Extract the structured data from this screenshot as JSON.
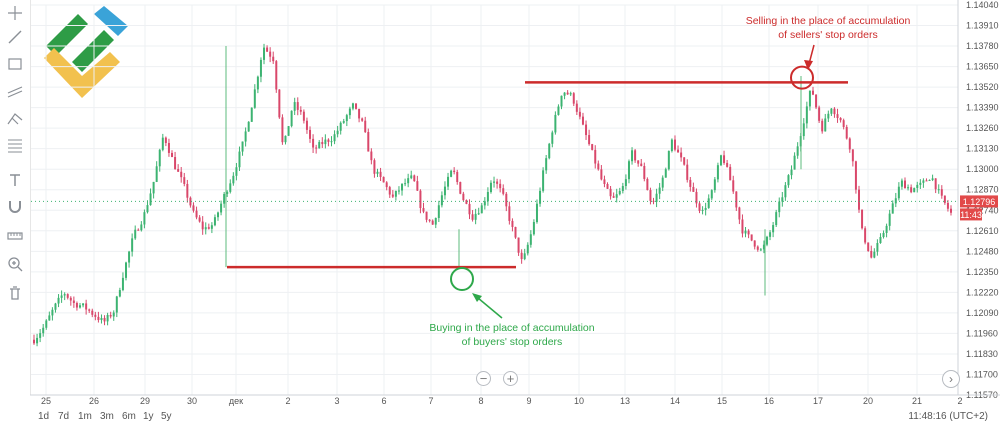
{
  "bottom_bar": {
    "ranges": [
      "1d",
      "7d",
      "1m",
      "3m",
      "6m",
      "1y",
      "5y"
    ],
    "clock": "11:48:16 (UTC+2)"
  },
  "icons": {
    "toolbar": [
      "crosshair-icon",
      "trend-line-icon",
      "rectangle-icon",
      "channel-icon",
      "pitchfork-icon",
      "fib-icon",
      "text-icon",
      "magnet-icon",
      "ruler-icon",
      "zoom-icon",
      "trash-icon"
    ],
    "zoom_out": "minus-icon",
    "zoom_in": "plus-icon",
    "scroll_right": "chevron-right-icon"
  },
  "chart_data": {
    "type": "candlestick",
    "x_labels": [
      "25",
      "26",
      "29",
      "30",
      "дек",
      "2",
      "3",
      "6",
      "7",
      "8",
      "9",
      "10",
      "13",
      "14",
      "15",
      "16",
      "17",
      "20",
      "21",
      "2"
    ],
    "y_ticks": [
      "1.14040",
      "1.13910",
      "1.13780",
      "1.13650",
      "1.13520",
      "1.13390",
      "1.13260",
      "1.13130",
      "1.13000",
      "1.12870",
      "1.12740",
      "1.12610",
      "1.12480",
      "1.12350",
      "1.12220",
      "1.12090",
      "1.11960",
      "1.11830",
      "1.11700",
      "1.11570"
    ],
    "ylim": [
      1.1157,
      1.1404
    ],
    "last_price": {
      "value": "1.12796",
      "time": "11:43",
      "color": "#e24a4a"
    },
    "colors": {
      "up": "#3cb371",
      "down": "#d9476a",
      "annotation_red": "#cc2b2b",
      "annotation_green": "#2ea84a",
      "grid": "#eef0f3"
    },
    "levels": [
      {
        "name": "resistance",
        "value": 1.1355,
        "color": "#cc2b2b"
      },
      {
        "name": "support",
        "value": 1.1238,
        "color": "#cc2b2b"
      }
    ],
    "annotations": [
      {
        "name": "sell-annotation",
        "lines": [
          "Selling in the place of accumulation",
          "of sellers' stop orders"
        ],
        "color": "#cc2b2b"
      },
      {
        "name": "buy-annotation",
        "lines": [
          "Buying in the place of accumulation",
          "of buyers' stop orders"
        ],
        "color": "#2ea84a"
      }
    ],
    "price_path": [
      [
        0,
        1.1192
      ],
      [
        1,
        1.12
      ],
      [
        2,
        1.1212
      ],
      [
        3,
        1.1222
      ],
      [
        4,
        1.1215
      ],
      [
        5,
        1.1213
      ],
      [
        6,
        1.1208
      ],
      [
        7,
        1.1203
      ],
      [
        8,
        1.121
      ],
      [
        9,
        1.1235
      ],
      [
        10,
        1.1258
      ],
      [
        11,
        1.127
      ],
      [
        12,
        1.1292
      ],
      [
        13,
        1.1322
      ],
      [
        14,
        1.1304
      ],
      [
        15,
        1.129
      ],
      [
        16,
        1.1272
      ],
      [
        17,
        1.1262
      ],
      [
        18,
        1.1265
      ],
      [
        19,
        1.1282
      ],
      [
        20,
        1.1297
      ],
      [
        21,
        1.1317
      ],
      [
        22,
        1.1345
      ],
      [
        23,
        1.1378
      ],
      [
        24,
        1.137
      ],
      [
        25,
        1.1312
      ],
      [
        26,
        1.1342
      ],
      [
        27,
        1.1333
      ],
      [
        28,
        1.1312
      ],
      [
        29,
        1.1317
      ],
      [
        30,
        1.132
      ],
      [
        31,
        1.133
      ],
      [
        32,
        1.134
      ],
      [
        33,
        1.1328
      ],
      [
        34,
        1.13
      ],
      [
        35,
        1.1292
      ],
      [
        36,
        1.1282
      ],
      [
        37,
        1.129
      ],
      [
        38,
        1.1295
      ],
      [
        39,
        1.1272
      ],
      [
        40,
        1.1265
      ],
      [
        41,
        1.1285
      ],
      [
        42,
        1.13
      ],
      [
        43,
        1.1282
      ],
      [
        44,
        1.127
      ],
      [
        45,
        1.1277
      ],
      [
        46,
        1.1295
      ],
      [
        47,
        1.1284
      ],
      [
        48,
        1.1262
      ],
      [
        49,
        1.124
      ],
      [
        50,
        1.1262
      ],
      [
        51,
        1.1295
      ],
      [
        52,
        1.1325
      ],
      [
        53,
        1.135
      ],
      [
        54,
        1.1346
      ],
      [
        55,
        1.1328
      ],
      [
        56,
        1.131
      ],
      [
        57,
        1.1292
      ],
      [
        58,
        1.128
      ],
      [
        59,
        1.1287
      ],
      [
        60,
        1.131
      ],
      [
        61,
        1.13
      ],
      [
        62,
        1.1277
      ],
      [
        63,
        1.1292
      ],
      [
        64,
        1.1318
      ],
      [
        65,
        1.1305
      ],
      [
        66,
        1.1287
      ],
      [
        67,
        1.1272
      ],
      [
        68,
        1.1285
      ],
      [
        69,
        1.131
      ],
      [
        70,
        1.129
      ],
      [
        71,
        1.1262
      ],
      [
        72,
        1.1255
      ],
      [
        73,
        1.1248
      ],
      [
        74,
        1.1262
      ],
      [
        75,
        1.1282
      ],
      [
        76,
        1.13
      ],
      [
        77,
        1.1325
      ],
      [
        78,
        1.1352
      ],
      [
        79,
        1.1325
      ],
      [
        80,
        1.134
      ],
      [
        81,
        1.133
      ],
      [
        82,
        1.1312
      ],
      [
        83,
        1.1262
      ],
      [
        84,
        1.1244
      ],
      [
        85,
        1.1256
      ],
      [
        86,
        1.1274
      ],
      [
        87,
        1.1292
      ],
      [
        88,
        1.1287
      ],
      [
        89,
        1.129
      ],
      [
        90,
        1.1296
      ],
      [
        91,
        1.1282
      ],
      [
        92,
        1.1272
      ]
    ],
    "grid": true
  }
}
